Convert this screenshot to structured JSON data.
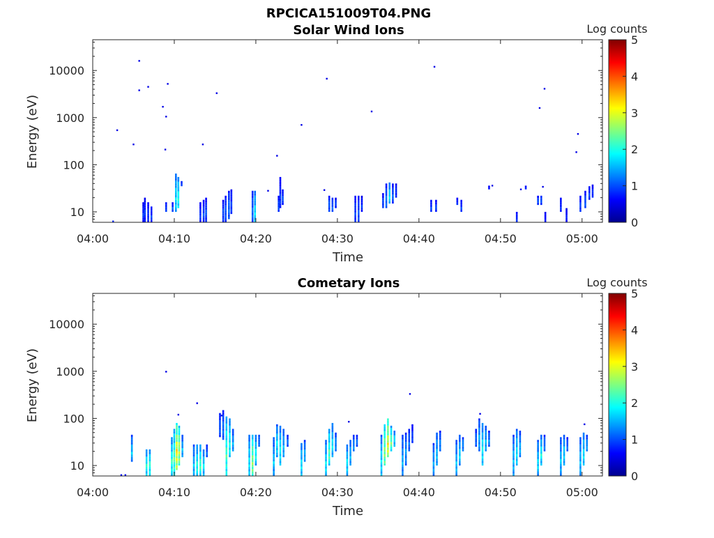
{
  "figure": {
    "title": "RPCICA151009T04.PNG"
  },
  "panels": [
    {
      "title": "Solar Wind Ions",
      "xlabel": "Time",
      "ylabel": "Energy (eV)",
      "colorbar_label": "Log counts"
    },
    {
      "title": "Cometary Ions",
      "xlabel": "Time",
      "ylabel": "Energy (eV)",
      "colorbar_label": "Log counts"
    }
  ],
  "colorbar": {
    "colormap": "jet",
    "range": [
      0,
      5
    ],
    "ticks": [
      "0",
      "1",
      "2",
      "3",
      "4",
      "5"
    ]
  },
  "chart_data": [
    {
      "type": "heatmap",
      "title": "Solar Wind Ions",
      "xlabel": "Time",
      "ylabel": "Energy (eV)",
      "x_unit": "minutes after 04:00",
      "xlim": [
        0,
        62.5
      ],
      "ylim": [
        6,
        45000
      ],
      "yscale": "log",
      "x_ticks": [
        0,
        10,
        20,
        30,
        40,
        50,
        60
      ],
      "x_tick_labels": [
        "04:00",
        "04:10",
        "04:20",
        "04:30",
        "04:40",
        "04:50",
        "05:00"
      ],
      "y_ticks": [
        10,
        100,
        1000,
        10000
      ],
      "y_tick_labels": [
        "10",
        "100",
        "1000",
        "10000"
      ],
      "clim": [
        0,
        5
      ],
      "points": [
        [
          2.5,
          6,
          0.8
        ],
        [
          3.0,
          540,
          0.5
        ],
        [
          5.0,
          270,
          0.5
        ],
        [
          5.7,
          3800,
          0.5
        ],
        [
          5.7,
          16000,
          0.5
        ],
        [
          6.8,
          4500,
          0.5
        ],
        [
          8.6,
          1700,
          0.5
        ],
        [
          8.9,
          210,
          0.5
        ],
        [
          9.0,
          1050,
          0.5
        ],
        [
          9.2,
          5200,
          0.5
        ],
        [
          13.5,
          270,
          0.5
        ],
        [
          15.2,
          3300,
          0.5
        ],
        [
          22.6,
          155,
          0.5
        ],
        [
          25.6,
          700,
          0.5
        ],
        [
          28.7,
          6700,
          0.5
        ],
        [
          34.2,
          1350,
          0.5
        ],
        [
          41.9,
          12000,
          0.5
        ],
        [
          54.8,
          1600,
          0.5
        ],
        [
          55.4,
          4100,
          0.5
        ],
        [
          59.3,
          185,
          0.5
        ],
        [
          59.5,
          450,
          0.5
        ],
        [
          28.4,
          29,
          0.5
        ],
        [
          21.5,
          28,
          0.5
        ],
        [
          49.0,
          36,
          0.5
        ],
        [
          52.5,
          30,
          0.5
        ],
        [
          55.2,
          34,
          0.5
        ]
      ],
      "bursts": [
        [
          6.2,
          6,
          16,
          0.9
        ],
        [
          6.4,
          6,
          20,
          0.9
        ],
        [
          6.8,
          6,
          16,
          0.9
        ],
        [
          7.2,
          6,
          13,
          1.0
        ],
        [
          9.0,
          10,
          16,
          1.0
        ],
        [
          9.8,
          10,
          16,
          1.1
        ],
        [
          10.2,
          10,
          65,
          1.8
        ],
        [
          10.5,
          12,
          55,
          2.0
        ],
        [
          10.9,
          35,
          45,
          1.0
        ],
        [
          13.2,
          6,
          16,
          0.9
        ],
        [
          13.6,
          6,
          18,
          1.0
        ],
        [
          13.9,
          6,
          20,
          1.0
        ],
        [
          16.0,
          6,
          18,
          1.0
        ],
        [
          16.3,
          6,
          22,
          1.1
        ],
        [
          16.7,
          7,
          28,
          1.2
        ],
        [
          17.0,
          9,
          30,
          1.0
        ],
        [
          19.6,
          6,
          28,
          1.2
        ],
        [
          19.9,
          6,
          28,
          1.8
        ],
        [
          22.8,
          10,
          22,
          1.0
        ],
        [
          23.0,
          12,
          55,
          0.9
        ],
        [
          23.3,
          14,
          30,
          1.0
        ],
        [
          29.0,
          10,
          22,
          1.1
        ],
        [
          29.4,
          10,
          20,
          1.2
        ],
        [
          29.8,
          12,
          20,
          1.0
        ],
        [
          32.2,
          6,
          22,
          1.0
        ],
        [
          32.6,
          6,
          22,
          1.1
        ],
        [
          33.0,
          10,
          22,
          0.9
        ],
        [
          35.6,
          12,
          25,
          1.0
        ],
        [
          36.0,
          12,
          40,
          1.2
        ],
        [
          36.4,
          15,
          42,
          1.8
        ],
        [
          36.8,
          15,
          40,
          1.1
        ],
        [
          37.2,
          20,
          40,
          0.9
        ],
        [
          41.5,
          10,
          18,
          1.0
        ],
        [
          42.1,
          10,
          18,
          1.0
        ],
        [
          44.7,
          14,
          20,
          0.9
        ],
        [
          45.2,
          10,
          18,
          1.0
        ],
        [
          48.6,
          30,
          36,
          0.8
        ],
        [
          52.0,
          6,
          10,
          0.9
        ],
        [
          53.1,
          30,
          36,
          0.8
        ],
        [
          54.6,
          14,
          22,
          1.0
        ],
        [
          55.0,
          14,
          22,
          1.1
        ],
        [
          55.5,
          6,
          10,
          0.8
        ],
        [
          57.4,
          10,
          20,
          0.9
        ],
        [
          58.1,
          6,
          12,
          0.8
        ],
        [
          59.8,
          10,
          22,
          1.0
        ],
        [
          60.4,
          12,
          28,
          1.1
        ],
        [
          60.9,
          18,
          35,
          1.0
        ],
        [
          61.3,
          20,
          38,
          0.9
        ]
      ]
    },
    {
      "type": "heatmap",
      "title": "Cometary Ions",
      "xlabel": "Time",
      "ylabel": "Energy (eV)",
      "x_unit": "minutes after 04:00",
      "xlim": [
        0,
        62.5
      ],
      "ylim": [
        6,
        45000
      ],
      "yscale": "log",
      "x_ticks": [
        0,
        10,
        20,
        30,
        40,
        50,
        60
      ],
      "x_tick_labels": [
        "04:00",
        "04:10",
        "04:20",
        "04:30",
        "04:40",
        "04:50",
        "05:00"
      ],
      "y_ticks": [
        10,
        100,
        1000,
        10000
      ],
      "y_tick_labels": [
        "10",
        "100",
        "1000",
        "10000"
      ],
      "clim": [
        0,
        5
      ],
      "points": [
        [
          9.0,
          980,
          0.5
        ],
        [
          12.8,
          210,
          0.5
        ],
        [
          38.9,
          330,
          0.5
        ],
        [
          47.5,
          125,
          0.5
        ],
        [
          31.4,
          85,
          0.5
        ],
        [
          60.3,
          75,
          0.5
        ],
        [
          15.8,
          115,
          0.5
        ],
        [
          10.5,
          120,
          0.5
        ],
        [
          3.5,
          6,
          0.7
        ],
        [
          4.0,
          6,
          0.7
        ]
      ],
      "bursts": [
        [
          4.8,
          12,
          45,
          1.6
        ],
        [
          6.6,
          6,
          22,
          2.0
        ],
        [
          7.0,
          6,
          22,
          2.1
        ],
        [
          9.7,
          6,
          40,
          2.1
        ],
        [
          10.0,
          6,
          60,
          2.3
        ],
        [
          10.3,
          8,
          80,
          3.2
        ],
        [
          10.6,
          10,
          70,
          2.8
        ],
        [
          11.0,
          15,
          45,
          1.6
        ],
        [
          12.4,
          6,
          28,
          1.6
        ],
        [
          12.8,
          6,
          28,
          2.0
        ],
        [
          13.2,
          6,
          28,
          2.2
        ],
        [
          13.6,
          6,
          22,
          1.8
        ],
        [
          14.0,
          15,
          28,
          1.2
        ],
        [
          15.6,
          40,
          130,
          1.1
        ],
        [
          16.0,
          35,
          150,
          1.2
        ],
        [
          16.4,
          6,
          110,
          2.2
        ],
        [
          16.8,
          15,
          100,
          2.0
        ],
        [
          17.2,
          20,
          60,
          1.5
        ],
        [
          19.2,
          6,
          45,
          1.8
        ],
        [
          19.6,
          6,
          45,
          2.6
        ],
        [
          20.0,
          10,
          45,
          1.9
        ],
        [
          20.4,
          25,
          45,
          1.3
        ],
        [
          22.2,
          6,
          40,
          1.6
        ],
        [
          22.6,
          15,
          75,
          1.8
        ],
        [
          23.0,
          10,
          70,
          1.9
        ],
        [
          23.4,
          15,
          60,
          1.6
        ],
        [
          23.9,
          25,
          45,
          1.2
        ],
        [
          25.6,
          6,
          30,
          1.8
        ],
        [
          26.0,
          12,
          35,
          1.5
        ],
        [
          28.6,
          6,
          35,
          1.8
        ],
        [
          29.0,
          10,
          60,
          2.2
        ],
        [
          29.4,
          15,
          80,
          1.8
        ],
        [
          29.8,
          20,
          50,
          1.4
        ],
        [
          31.2,
          6,
          28,
          1.8
        ],
        [
          31.6,
          10,
          35,
          1.6
        ],
        [
          32.0,
          20,
          45,
          1.4
        ],
        [
          32.4,
          25,
          45,
          1.2
        ],
        [
          35.4,
          6,
          45,
          1.8
        ],
        [
          35.8,
          10,
          75,
          2.6
        ],
        [
          36.2,
          15,
          100,
          3.1
        ],
        [
          36.6,
          20,
          70,
          2.4
        ],
        [
          37.0,
          25,
          55,
          1.8
        ],
        [
          38.0,
          6,
          45,
          1.5
        ],
        [
          38.4,
          10,
          50,
          1.4
        ],
        [
          38.8,
          20,
          60,
          1.2
        ],
        [
          39.2,
          30,
          75,
          1.0
        ],
        [
          41.8,
          6,
          30,
          1.5
        ],
        [
          42.2,
          10,
          50,
          1.6
        ],
        [
          42.6,
          20,
          55,
          1.3
        ],
        [
          44.6,
          6,
          35,
          1.6
        ],
        [
          45.0,
          10,
          45,
          1.7
        ],
        [
          45.4,
          20,
          40,
          1.4
        ],
        [
          47.0,
          25,
          60,
          1.2
        ],
        [
          47.4,
          20,
          100,
          1.5
        ],
        [
          47.8,
          10,
          80,
          1.9
        ],
        [
          48.2,
          20,
          70,
          1.6
        ],
        [
          48.6,
          25,
          55,
          1.3
        ],
        [
          51.6,
          6,
          45,
          1.6
        ],
        [
          52.0,
          10,
          60,
          1.8
        ],
        [
          52.4,
          15,
          55,
          1.5
        ],
        [
          54.6,
          6,
          35,
          1.7
        ],
        [
          55.0,
          10,
          45,
          1.9
        ],
        [
          55.4,
          20,
          45,
          1.3
        ],
        [
          57.4,
          6,
          40,
          1.6
        ],
        [
          57.8,
          10,
          45,
          1.7
        ],
        [
          58.2,
          20,
          40,
          1.2
        ],
        [
          59.8,
          6,
          40,
          1.6
        ],
        [
          60.2,
          10,
          50,
          1.8
        ],
        [
          60.6,
          20,
          45,
          1.4
        ]
      ]
    }
  ]
}
